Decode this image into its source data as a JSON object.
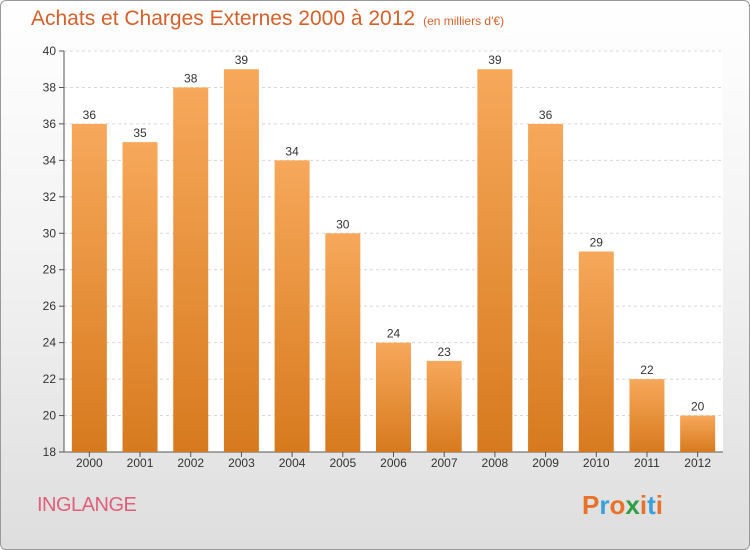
{
  "title": "Achats et Charges Externes 2000 à 2012",
  "subtitle": "(en milliers d'€)",
  "commune": "INGLANGE",
  "logo": {
    "letters": [
      "P",
      "r",
      "o",
      "x",
      "i",
      "t",
      "i"
    ],
    "colors": [
      "#e8722a",
      "#3aa0d8",
      "#e8722a",
      "#2f9e44",
      "#e8722a",
      "#3aa0d8",
      "#e8722a"
    ]
  },
  "colors": {
    "bar_top": "#f7a85a",
    "bar_bottom": "#d77a1e",
    "title": "#d5602a",
    "commune": "#e0607a"
  },
  "chart_data": {
    "type": "bar",
    "categories": [
      "2000",
      "2001",
      "2002",
      "2003",
      "2004",
      "2005",
      "2006",
      "2007",
      "2008",
      "2009",
      "2010",
      "2011",
      "2012"
    ],
    "values": [
      36,
      35,
      38,
      39,
      34,
      30,
      24,
      23,
      39,
      36,
      29,
      22,
      20
    ],
    "ylim": [
      18,
      40
    ],
    "yticks": [
      18,
      20,
      22,
      24,
      26,
      28,
      30,
      32,
      34,
      36,
      38,
      40
    ],
    "grid": true
  }
}
